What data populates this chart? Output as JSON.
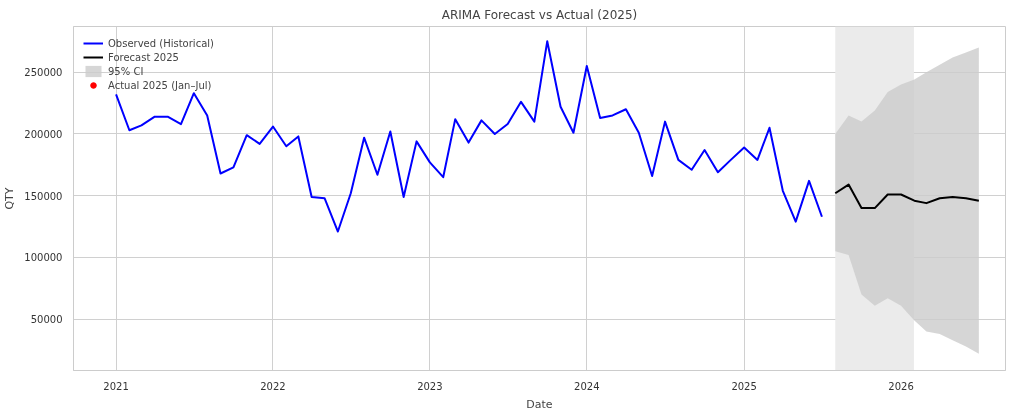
{
  "chart_data": {
    "type": "line",
    "title": "ARIMA Forecast vs Actual (2025)",
    "xlabel": "Date",
    "ylabel": "QTY",
    "xlim": [
      "2020-09-24",
      "2026-09-01"
    ],
    "ylim": [
      8500,
      287000
    ],
    "xticks": [
      "2021",
      "2022",
      "2023",
      "2024",
      "2025",
      "2026"
    ],
    "yticks": [
      50000,
      100000,
      150000,
      200000,
      250000
    ],
    "grid": true,
    "legend": "top left",
    "bands": [
      {
        "axis": "x",
        "from": "2025-08-01",
        "to": "2026-01-31",
        "color": "#ebebeb"
      }
    ],
    "series": [
      {
        "name": "Observed (Historical)",
        "color": "#0000ff",
        "x": [
          "2021-01",
          "2021-02",
          "2021-03",
          "2021-04",
          "2021-05",
          "2021-06",
          "2021-07",
          "2021-08",
          "2021-09",
          "2021-10",
          "2021-11",
          "2021-12",
          "2022-01",
          "2022-02",
          "2022-03",
          "2022-04",
          "2022-05",
          "2022-06",
          "2022-07",
          "2022-08",
          "2022-09",
          "2022-10",
          "2022-11",
          "2022-12",
          "2023-01",
          "2023-02",
          "2023-03",
          "2023-04",
          "2023-05",
          "2023-06",
          "2023-07",
          "2023-08",
          "2023-09",
          "2023-10",
          "2023-11",
          "2023-12",
          "2024-01",
          "2024-02",
          "2024-03",
          "2024-04",
          "2024-05",
          "2024-06",
          "2024-07",
          "2024-08",
          "2024-09",
          "2024-10",
          "2024-11",
          "2024-12",
          "2025-01",
          "2025-02",
          "2025-03",
          "2025-04",
          "2025-05",
          "2025-06",
          "2025-07"
        ],
        "values": [
          232000,
          203000,
          207000,
          214000,
          214000,
          208000,
          233000,
          215000,
          168000,
          173000,
          199000,
          192000,
          206000,
          190000,
          198000,
          149000,
          148000,
          121000,
          152000,
          197000,
          167000,
          202000,
          149000,
          194000,
          177000,
          165000,
          212000,
          193000,
          211000,
          200000,
          208000,
          226000,
          210000,
          275000,
          222000,
          201000,
          255000,
          213000,
          215000,
          220000,
          201000,
          166000,
          210000,
          179000,
          171000,
          187000,
          169000,
          179000,
          189000,
          179000,
          205000,
          154000,
          129000,
          162000,
          133000
        ]
      },
      {
        "name": "Forecast 2025",
        "color": "#000000",
        "x": [
          "2025-08",
          "2025-09",
          "2025-10",
          "2025-11",
          "2025-12",
          "2026-01",
          "2026-02",
          "2026-03",
          "2026-04",
          "2026-05",
          "2026-06",
          "2026-07"
        ],
        "values": [
          152000,
          159000,
          140000,
          140000,
          151000,
          151000,
          146000,
          144000,
          148000,
          149000,
          148000,
          146000
        ],
        "lower": [
          105000,
          102000,
          70000,
          61000,
          67000,
          61000,
          49000,
          40000,
          38000,
          33000,
          28000,
          22000
        ],
        "upper": [
          200000,
          215000,
          210000,
          219000,
          234000,
          240000,
          244000,
          250000,
          256000,
          262000,
          266000,
          270000
        ]
      },
      {
        "name": "95% CI",
        "type": "area",
        "color": "#cccccc"
      },
      {
        "name": "Actual 2025 (Jan–Jul)",
        "type": "scatter",
        "color": "#ff0000"
      }
    ]
  }
}
